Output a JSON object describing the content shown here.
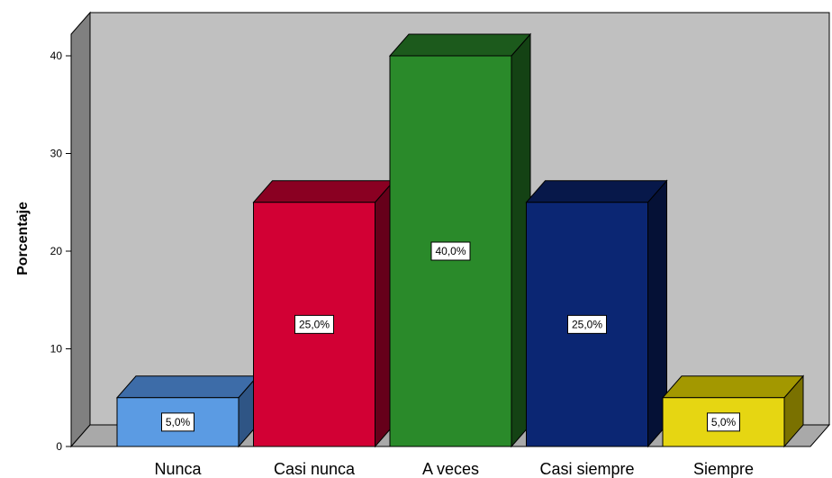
{
  "chart_data": {
    "type": "bar",
    "categories": [
      "Nunca",
      "Casi nunca",
      "A veces",
      "Casi siempre",
      "Siempre"
    ],
    "values": [
      5,
      25,
      40,
      25,
      5
    ],
    "data_labels": [
      "5,0%",
      "25,0%",
      "40,0%",
      "25,0%",
      "5,0%"
    ],
    "ylabel": "Porcentaje",
    "ylim": [
      0,
      40
    ],
    "yticks": [
      "0",
      "10",
      "20",
      "30",
      "40"
    ],
    "three_d": true,
    "grid": false,
    "colors": {
      "plot_background": "#c0c0c0",
      "left_wall": "#808080",
      "floor": "#a9a9a9",
      "bars": [
        {
          "front": "#5b9be3",
          "top": "#3d6ca8",
          "side": "#2f5585"
        },
        {
          "front": "#d20034",
          "top": "#8a0022",
          "side": "#66001a"
        },
        {
          "front": "#2a8a2a",
          "top": "#1c5a1c",
          "side": "#144214"
        },
        {
          "front": "#0b2673",
          "top": "#07184a",
          "side": "#051136"
        },
        {
          "front": "#e6d612",
          "top": "#a39800",
          "side": "#7a7100"
        }
      ]
    }
  }
}
